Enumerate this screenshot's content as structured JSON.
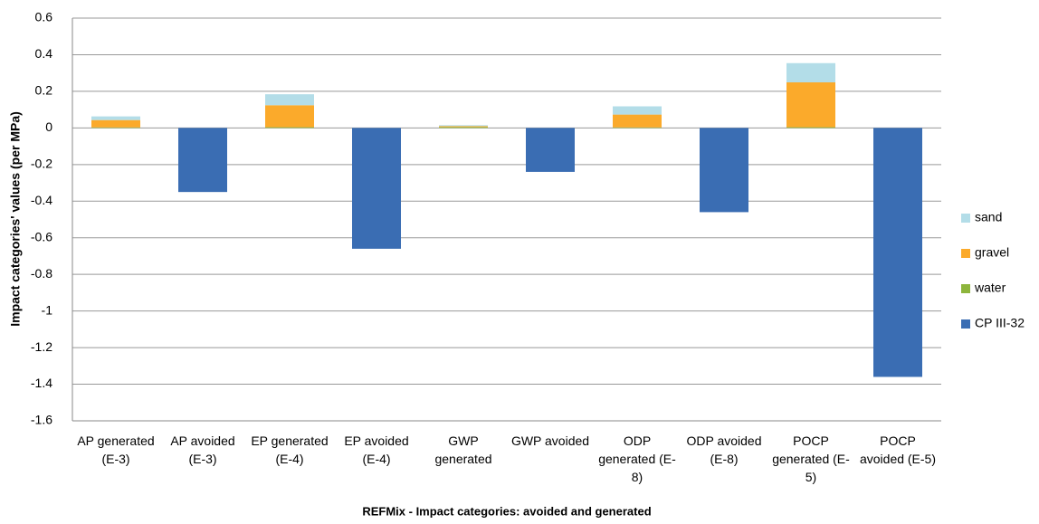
{
  "chart_data": {
    "type": "stacked_bar",
    "y_label": "Impact categories' values (per MPa)",
    "x_label": "REFMix - Impact categories: avoided and generated",
    "categories": [
      "AP generated (E-3)",
      "AP avoided (E-3)",
      "EP generated (E-4)",
      "EP avoided (E-4)",
      "GWP generated",
      "GWP avoided",
      "ODP generated (E-8)",
      "ODP avoided (E-8)",
      "POCP generated (E-5)",
      "POCP avoided (E-5)"
    ],
    "series": [
      {
        "name": "CP III-32",
        "color": "#3a6db3",
        "values": [
          0,
          -0.35,
          0,
          -0.66,
          0,
          -0.24,
          0,
          -0.46,
          0,
          -1.36
        ]
      },
      {
        "name": "water",
        "color": "#8db53c",
        "values": [
          0.003,
          0,
          0.004,
          0,
          0.005,
          0,
          0.003,
          0,
          0.004,
          0
        ]
      },
      {
        "name": "gravel",
        "color": "#fbaa2b",
        "values": [
          0.04,
          0,
          0.12,
          0,
          0.005,
          0,
          0.07,
          0,
          0.245,
          0
        ]
      },
      {
        "name": "sand",
        "color": "#b3dde8",
        "values": [
          0.02,
          0,
          0.06,
          0,
          0.005,
          0,
          0.045,
          0,
          0.105,
          0
        ]
      }
    ],
    "ylim": [
      -1.6,
      0.6
    ],
    "yticks": [
      -1.6,
      -1.4,
      -1.2,
      -1,
      -0.8,
      -0.6,
      -0.4,
      -0.2,
      0,
      0.2,
      0.4,
      0.6
    ],
    "grid": true,
    "legend": "right"
  }
}
